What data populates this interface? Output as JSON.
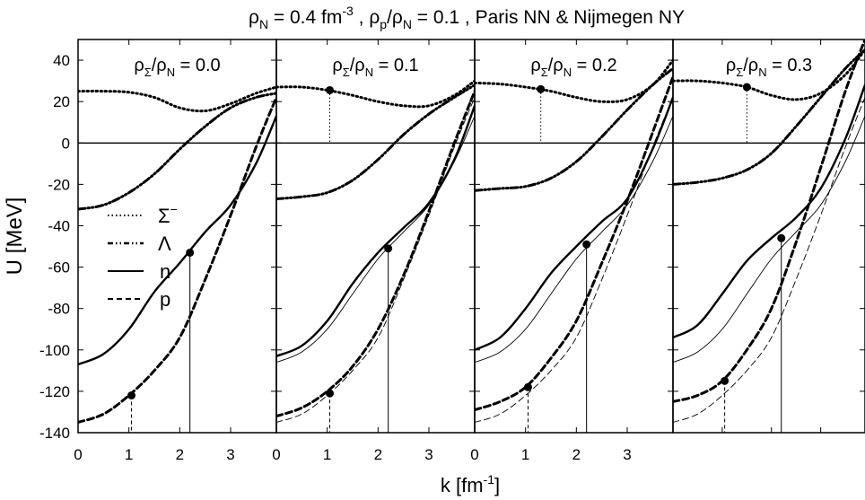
{
  "title_parts": {
    "rho": "ρ",
    "n_sub": "N",
    "eq1": " = 0.4 fm",
    "exp": "-3",
    "mid": " , ρ",
    "p_sub": "p",
    "slash": "/ρ",
    "n_sub2": "N",
    "tail": " = 0.1 , Paris NN & Nijmegen NY"
  },
  "ylabel": "U [MeV]",
  "xlabel_main": "k [fm",
  "xlabel_exp": "-1",
  "xlabel_close": "]",
  "legend": {
    "sigma": "Σ",
    "sigma_sup": "−",
    "lambda": "Λ",
    "n": "n",
    "p": "p"
  },
  "colors": {
    "line": "#000000",
    "background": "#ffffff"
  },
  "chart_data": [
    {
      "type": "line",
      "panel_label": {
        "pre": "ρ",
        "sub1": "Σ",
        "mid": "/ρ",
        "sub2": "N",
        "post": " = 0.0"
      },
      "xlim": [
        0,
        3.9
      ],
      "ylim": [
        -140,
        50
      ],
      "x_ticks": [
        "0",
        "1",
        "2",
        "3"
      ],
      "y_ticks": [
        "40",
        "20",
        "0",
        "-20",
        "-40",
        "-60",
        "-80",
        "-100",
        "-120",
        "-140"
      ],
      "series": [
        {
          "name": "Σ−",
          "style": "dotted",
          "width": 3,
          "x": [
            0,
            0.5,
            1.0,
            1.5,
            2.0,
            2.5,
            3.0,
            3.5,
            3.9
          ],
          "y": [
            25,
            25,
            24.5,
            22,
            17,
            15.5,
            19,
            24,
            27
          ]
        },
        {
          "name": "Λ",
          "style": "dashdot",
          "width": 3,
          "x": [
            0,
            0.5,
            1.0,
            1.5,
            2.0,
            2.5,
            3.0,
            3.5,
            3.9
          ],
          "y": [
            -32,
            -30,
            -24,
            -15,
            -3,
            8,
            17,
            22,
            24
          ]
        },
        {
          "name": "n",
          "style": "solid",
          "width": 2.4,
          "x": [
            0,
            0.5,
            1.0,
            1.5,
            2.0,
            2.5,
            3.0,
            3.5,
            3.9
          ],
          "y": [
            -107,
            -102,
            -90,
            -72,
            -58,
            -43,
            -30,
            -10,
            13
          ]
        },
        {
          "name": "p",
          "style": "dashed",
          "width": 3,
          "x": [
            0,
            0.5,
            1.0,
            1.5,
            2.0,
            2.5,
            3.0,
            3.5,
            3.9
          ],
          "y": [
            -135,
            -131,
            -122,
            -110,
            -94,
            -66,
            -35,
            -2,
            22
          ]
        }
      ],
      "markers": [
        {
          "x": 1.05,
          "y": -122,
          "drop": "dashed"
        },
        {
          "x": 2.2,
          "y": -53,
          "drop": "solid"
        }
      ]
    },
    {
      "type": "line",
      "panel_label": {
        "pre": "ρ",
        "sub1": "Σ",
        "mid": "/ρ",
        "sub2": "N",
        "post": " = 0.1"
      },
      "xlim": [
        0,
        3.9
      ],
      "ylim": [
        -140,
        50
      ],
      "x_ticks": [
        "0",
        "1",
        "2",
        "3"
      ],
      "series": [
        {
          "name": "Σ−",
          "style": "dotted",
          "width": 3,
          "x": [
            0,
            0.5,
            1.0,
            1.5,
            2.0,
            2.5,
            3.0,
            3.5,
            3.9
          ],
          "y": [
            27,
            27,
            25.5,
            23,
            20,
            18,
            18,
            23,
            30
          ]
        },
        {
          "name": "Λ",
          "style": "dashdot",
          "width": 3,
          "x": [
            0,
            0.5,
            1.0,
            1.5,
            2.0,
            2.5,
            3.0,
            3.5,
            3.9
          ],
          "y": [
            -27,
            -26,
            -24,
            -18,
            -8,
            4,
            14,
            22,
            28
          ]
        },
        {
          "name": "n",
          "style": "solid",
          "width": 2.4,
          "x": [
            0,
            0.5,
            1.0,
            1.5,
            2.0,
            2.5,
            3.0,
            3.5,
            3.9
          ],
          "y": [
            -103,
            -98,
            -86,
            -68,
            -53,
            -41,
            -29,
            -8,
            18
          ]
        },
        {
          "name": "n (ρΣ/ρN = 0)",
          "style": "solid",
          "width": 0.9,
          "x": [
            0,
            0.5,
            1.0,
            1.5,
            2.0,
            2.5,
            3.0,
            3.5,
            3.9
          ],
          "y": [
            -106,
            -101,
            -90,
            -73,
            -56,
            -43,
            -30,
            -9,
            13
          ]
        },
        {
          "name": "p",
          "style": "dashed",
          "width": 3,
          "x": [
            0,
            0.5,
            1.0,
            1.5,
            2.0,
            2.5,
            3.0,
            3.5,
            3.9
          ],
          "y": [
            -132,
            -128,
            -120,
            -108,
            -90,
            -64,
            -33,
            0,
            25
          ]
        },
        {
          "name": "p (ρΣ/ρN = 0)",
          "style": "dashed",
          "width": 0.9,
          "x": [
            0,
            0.5,
            1.0,
            1.5,
            2.0,
            2.5,
            3.0,
            3.5,
            3.9
          ],
          "y": [
            -135,
            -131,
            -122,
            -110,
            -94,
            -66,
            -35,
            -2,
            22
          ]
        }
      ],
      "markers": [
        {
          "x": 1.05,
          "y": -121,
          "drop": "dashed"
        },
        {
          "x": 2.2,
          "y": -51,
          "drop": "solid"
        },
        {
          "x": 1.05,
          "y": 25.5,
          "drop": "dotted"
        }
      ]
    },
    {
      "type": "line",
      "panel_label": {
        "pre": "ρ",
        "sub1": "Σ",
        "mid": "/ρ",
        "sub2": "N",
        "post": " = 0.2"
      },
      "xlim": [
        0,
        3.9
      ],
      "ylim": [
        -140,
        50
      ],
      "x_ticks": [
        "0",
        "1",
        "2",
        "3"
      ],
      "series": [
        {
          "name": "Σ−",
          "style": "dotted",
          "width": 3,
          "x": [
            0,
            0.5,
            1.0,
            1.5,
            2.0,
            2.5,
            3.0,
            3.5,
            3.9
          ],
          "y": [
            29,
            28.5,
            27,
            25,
            22,
            20,
            21,
            28,
            40
          ]
        },
        {
          "name": "Λ",
          "style": "dashdot",
          "width": 3,
          "x": [
            0,
            0.5,
            1.0,
            1.5,
            2.0,
            2.5,
            3.0,
            3.5,
            3.9
          ],
          "y": [
            -23,
            -22,
            -21,
            -17,
            -9,
            3,
            16,
            28,
            36
          ]
        },
        {
          "name": "n",
          "style": "solid",
          "width": 2.4,
          "x": [
            0,
            0.5,
            1.0,
            1.5,
            2.0,
            2.5,
            3.0,
            3.5,
            3.9
          ],
          "y": [
            -100,
            -94,
            -80,
            -63,
            -50,
            -38,
            -27,
            -3,
            22
          ]
        },
        {
          "name": "n (ρΣ/ρN = 0)",
          "style": "solid",
          "width": 0.9,
          "x": [
            0,
            0.5,
            1.0,
            1.5,
            2.0,
            2.5,
            3.0,
            3.5,
            3.9
          ],
          "y": [
            -106,
            -101,
            -90,
            -73,
            -56,
            -43,
            -30,
            -9,
            13
          ]
        },
        {
          "name": "p",
          "style": "dashed",
          "width": 3,
          "x": [
            0,
            0.5,
            1.0,
            1.5,
            2.0,
            2.5,
            3.0,
            3.5,
            3.9
          ],
          "y": [
            -129,
            -125,
            -118,
            -104,
            -86,
            -58,
            -28,
            5,
            32
          ]
        },
        {
          "name": "p (ρΣ/ρN = 0)",
          "style": "dashed",
          "width": 0.9,
          "x": [
            0,
            0.5,
            1.0,
            1.5,
            2.0,
            2.5,
            3.0,
            3.5,
            3.9
          ],
          "y": [
            -135,
            -131,
            -122,
            -110,
            -94,
            -66,
            -35,
            -2,
            22
          ]
        }
      ],
      "markers": [
        {
          "x": 1.05,
          "y": -118,
          "drop": "dashed"
        },
        {
          "x": 2.2,
          "y": -49,
          "drop": "solid"
        },
        {
          "x": 1.3,
          "y": 26,
          "drop": "dotted"
        }
      ]
    },
    {
      "type": "line",
      "panel_label": {
        "pre": "ρ",
        "sub1": "Σ",
        "mid": "/ρ",
        "sub2": "N",
        "post": " = 0.3"
      },
      "xlim": [
        0,
        3.9
      ],
      "ylim": [
        -140,
        50
      ],
      "x_ticks": [],
      "series": [
        {
          "name": "Σ−",
          "style": "dotted",
          "width": 3,
          "x": [
            0,
            0.5,
            1.0,
            1.5,
            2.0,
            2.5,
            3.0,
            3.5,
            3.9
          ],
          "y": [
            30,
            30,
            29,
            27,
            23,
            21,
            24,
            33,
            45
          ]
        },
        {
          "name": "Λ",
          "style": "dashdot",
          "width": 3,
          "x": [
            0,
            0.5,
            1.0,
            1.5,
            2.0,
            2.5,
            3.0,
            3.5,
            3.9
          ],
          "y": [
            -20,
            -19,
            -17,
            -13,
            -5,
            8,
            22,
            36,
            45
          ]
        },
        {
          "name": "n",
          "style": "solid",
          "width": 2.4,
          "x": [
            0,
            0.5,
            1.0,
            1.5,
            2.0,
            2.5,
            3.0,
            3.5,
            3.9
          ],
          "y": [
            -94,
            -88,
            -73,
            -57,
            -46,
            -36,
            -22,
            2,
            28
          ]
        },
        {
          "name": "n (ρΣ/ρN = 0)",
          "style": "solid",
          "width": 0.9,
          "x": [
            0,
            0.5,
            1.0,
            1.5,
            2.0,
            2.5,
            3.0,
            3.5,
            3.9
          ],
          "y": [
            -106,
            -101,
            -90,
            -73,
            -56,
            -43,
            -30,
            -9,
            13
          ]
        },
        {
          "name": "p",
          "style": "dashed",
          "width": 3,
          "x": [
            0,
            0.5,
            1.0,
            1.5,
            2.0,
            2.5,
            3.0,
            3.5,
            3.9
          ],
          "y": [
            -125,
            -122,
            -115,
            -100,
            -80,
            -48,
            -12,
            25,
            50
          ]
        },
        {
          "name": "p (ρΣ/ρN = 0)",
          "style": "dashed",
          "width": 0.9,
          "x": [
            0,
            0.5,
            1.0,
            1.5,
            2.0,
            2.5,
            3.0,
            3.5,
            3.9
          ],
          "y": [
            -135,
            -131,
            -122,
            -110,
            -94,
            -66,
            -35,
            -2,
            22
          ]
        }
      ],
      "markers": [
        {
          "x": 1.05,
          "y": -115,
          "drop": "dashed"
        },
        {
          "x": 2.2,
          "y": -46,
          "drop": "solid"
        },
        {
          "x": 1.5,
          "y": 27,
          "drop": "dotted"
        }
      ]
    }
  ]
}
